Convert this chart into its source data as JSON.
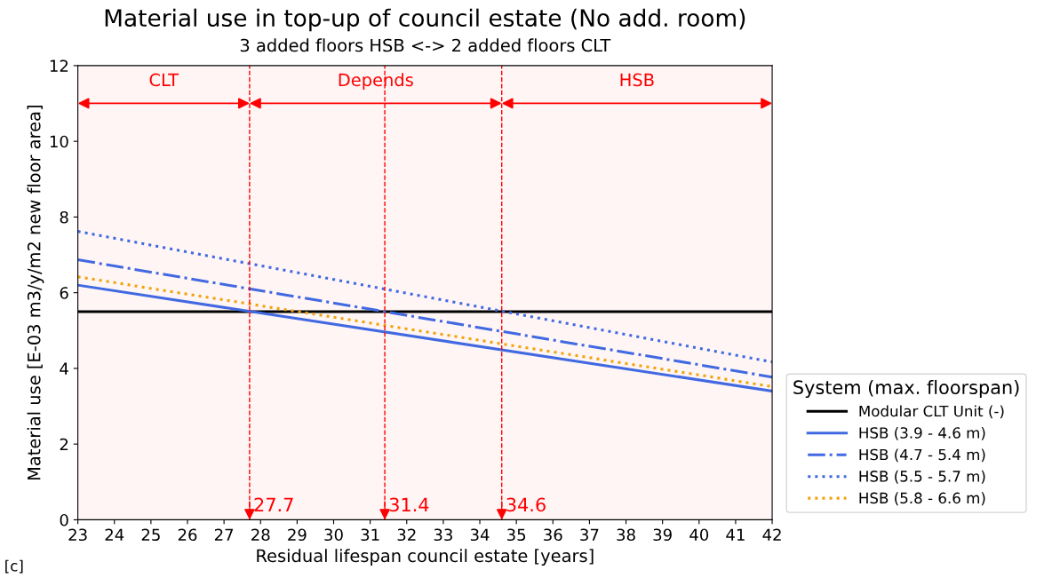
{
  "chart_data": {
    "type": "line",
    "title": "Material use in top-up of council estate (No add. room)",
    "subtitle": "3 added floors HSB <-> 2 added floors CLT",
    "xlabel": "Residual lifespan council estate [years]",
    "ylabel": "Material use [E-03 m3/y/m2 new floor area]",
    "legend_title": "System (max. floorspan)",
    "x": [
      23,
      42
    ],
    "series": [
      {
        "name": "Modular CLT Unit (-)",
        "color": "#000000",
        "line_style": "solid",
        "values": [
          5.5,
          5.5
        ]
      },
      {
        "name": "HSB (3.9 - 4.6 m)",
        "color": "#4169e1",
        "line_style": "solid",
        "values": [
          6.2,
          3.4
        ]
      },
      {
        "name": "HSB (4.7 - 5.4 m)",
        "color": "#4169e1",
        "line_style": "dashdot",
        "values": [
          6.87,
          3.77
        ]
      },
      {
        "name": "HSB (5.5 - 5.7 m)",
        "color": "#4169e1",
        "line_style": "dotted",
        "values": [
          7.62,
          4.17
        ]
      },
      {
        "name": "HSB (5.8 - 6.6 m)",
        "color": "#f0a30a",
        "line_style": "dotted",
        "values": [
          6.42,
          3.52
        ]
      }
    ],
    "xlim": [
      23,
      42
    ],
    "xticks": [
      23,
      24,
      25,
      26,
      27,
      28,
      29,
      30,
      31,
      32,
      33,
      34,
      35,
      36,
      37,
      38,
      39,
      40,
      41,
      42
    ],
    "ylim": [
      0,
      12
    ],
    "yticks": [
      0,
      2,
      4,
      6,
      8,
      10,
      12
    ],
    "ref_lines": [
      {
        "axis": "x",
        "value": 27.7,
        "label": "27.7",
        "color": "#ff0000",
        "line_style": "dashed"
      },
      {
        "axis": "x",
        "value": 31.4,
        "label": "31.4",
        "color": "#ff0000",
        "line_style": "dashed"
      },
      {
        "axis": "x",
        "value": 34.6,
        "label": "34.6",
        "color": "#ff0000",
        "line_style": "dashed"
      }
    ],
    "bands": [
      {
        "axis": "x",
        "from": 23,
        "to": 27.7,
        "label": "CLT",
        "color": "#ff0000"
      },
      {
        "axis": "x",
        "from": 27.7,
        "to": 34.6,
        "label": "Depends",
        "color": "#ff0000"
      },
      {
        "axis": "x",
        "from": 34.6,
        "to": 42,
        "label": "HSB",
        "color": "#ff0000"
      }
    ],
    "annotations": [
      "[c]"
    ],
    "grid": false,
    "legend": "right"
  }
}
